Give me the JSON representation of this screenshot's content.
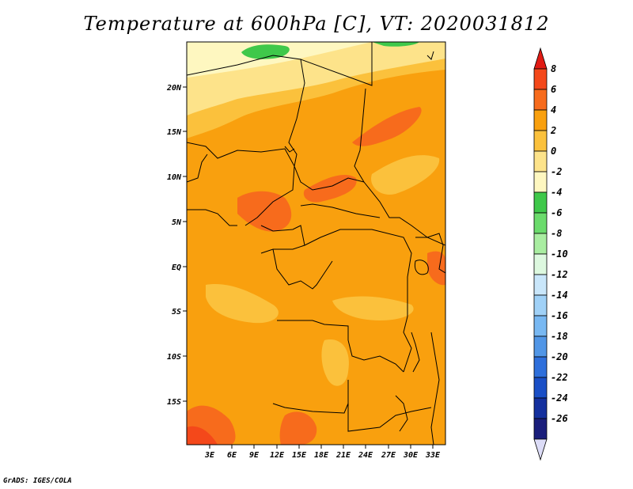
{
  "title": "Temperature at 600hPa [C], VT: 2020031812",
  "credit": "GrADS: IGES/COLA",
  "map": {
    "lat_labels": [
      "20N",
      "15N",
      "10N",
      "5N",
      "EQ",
      "5S",
      "10S",
      "15S"
    ],
    "lon_labels": [
      "3E",
      "6E",
      "9E",
      "12E",
      "15E",
      "18E",
      "21E",
      "24E",
      "27E",
      "30E",
      "33E"
    ]
  },
  "colorbar": {
    "labels": [
      "8",
      "6",
      "4",
      "2",
      "0",
      "-2",
      "-4",
      "-6",
      "-8",
      "-10",
      "-12",
      "-14",
      "-16",
      "-18",
      "-20",
      "-22",
      "-24",
      "-26"
    ],
    "colors": [
      "#e11b14",
      "#f4481a",
      "#f76b1c",
      "#f9a00e",
      "#fbc13c",
      "#fde38a",
      "#fef7c0",
      "#3fc84a",
      "#6bdb6c",
      "#a9eda1",
      "#ddf8df",
      "#c9e6fa",
      "#a0d1f7",
      "#78b8f2",
      "#5196e6",
      "#2e6fdb",
      "#1a4fc6",
      "#14309e",
      "#1a1e7b",
      "#dcdcf7"
    ]
  }
}
